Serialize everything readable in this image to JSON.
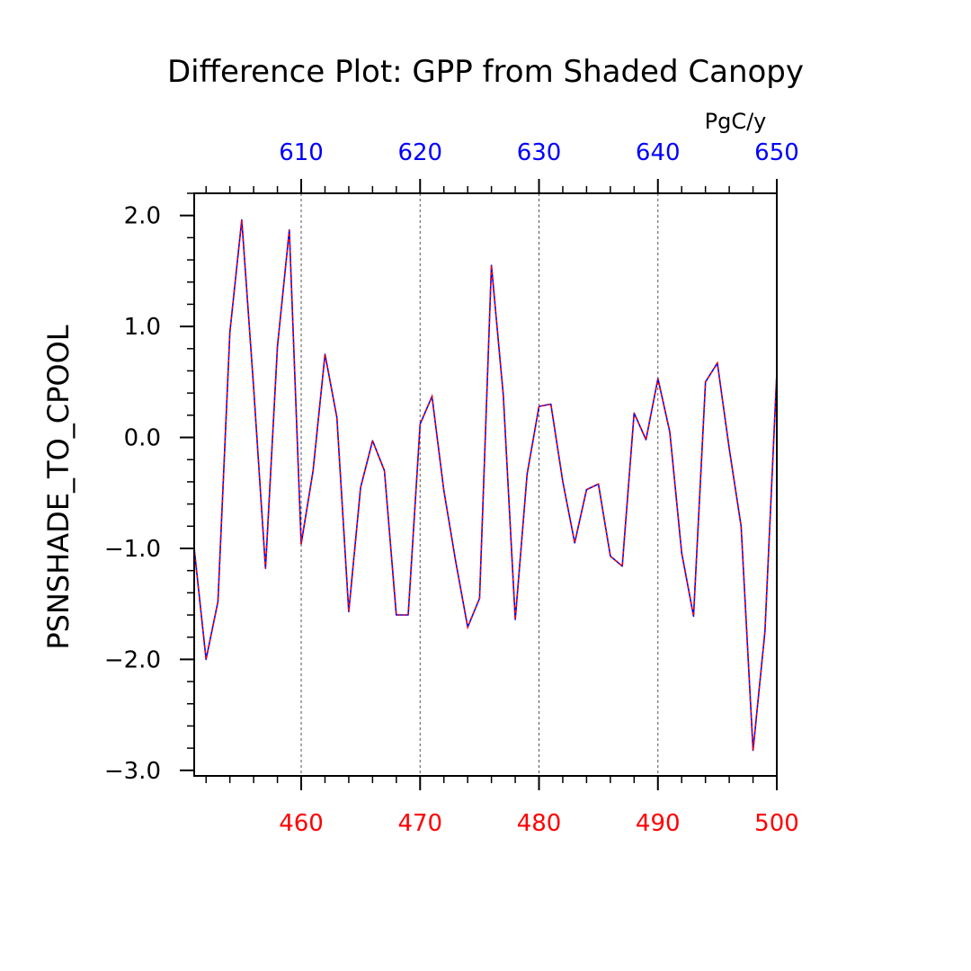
{
  "colors": {
    "bottom_axis": "#ff0000",
    "top_axis": "#0000ff",
    "line_solid": "#0000ff",
    "line_dashed": "#ff0000",
    "grid": "#555555",
    "frame": "#000000"
  },
  "chart_data": {
    "type": "line",
    "title": "Difference Plot: GPP from Shaded Canopy",
    "ylabel": "PSNSHADE_TO_CPOOL",
    "top_axis_units": "PgC/y",
    "xlim": [
      451,
      500
    ],
    "ylim": [
      -3.05,
      2.2
    ],
    "top_xlim": [
      601,
      650
    ],
    "x_ticks": [
      460,
      470,
      480,
      490,
      500
    ],
    "x_tick_labels": [
      "460",
      "470",
      "480",
      "490",
      "500"
    ],
    "top_x_ticks": [
      610,
      620,
      630,
      640,
      650
    ],
    "top_x_tick_labels": [
      "610",
      "620",
      "630",
      "640",
      "650"
    ],
    "y_ticks": [
      -3,
      -2,
      -1,
      0,
      1,
      2
    ],
    "y_tick_labels": [
      "−3.0",
      "−2.0",
      "−1.0",
      "0.0",
      "1.0",
      "2.0"
    ],
    "grid": "vertical dashed at major x ticks",
    "x": [
      451,
      452,
      453,
      454,
      455,
      456,
      457,
      458,
      459,
      460,
      461,
      462,
      463,
      464,
      465,
      466,
      467,
      468,
      469,
      470,
      471,
      472,
      473,
      474,
      475,
      476,
      477,
      478,
      479,
      480,
      481,
      482,
      483,
      484,
      485,
      486,
      487,
      488,
      489,
      490,
      491,
      492,
      493,
      494,
      495,
      496,
      497,
      498,
      499,
      500
    ],
    "series": [
      {
        "values": [
          -1.0,
          -2.0,
          -1.48,
          0.95,
          1.96,
          0.45,
          -1.18,
          0.82,
          1.87,
          -0.96,
          -0.3,
          0.75,
          0.18,
          -1.57,
          -0.45,
          -0.03,
          -0.3,
          -1.6,
          -1.6,
          0.12,
          0.37,
          -0.48,
          -1.12,
          -1.71,
          -1.45,
          1.55,
          0.38,
          -1.64,
          -0.33,
          0.28,
          0.3,
          -0.4,
          -0.95,
          -0.47,
          -0.42,
          -1.07,
          -1.16,
          0.22,
          -0.02,
          0.53,
          0.05,
          -1.04,
          -1.61,
          0.5,
          0.67,
          -0.1,
          -0.8,
          -2.82,
          -1.75,
          0.58
        ]
      }
    ]
  }
}
